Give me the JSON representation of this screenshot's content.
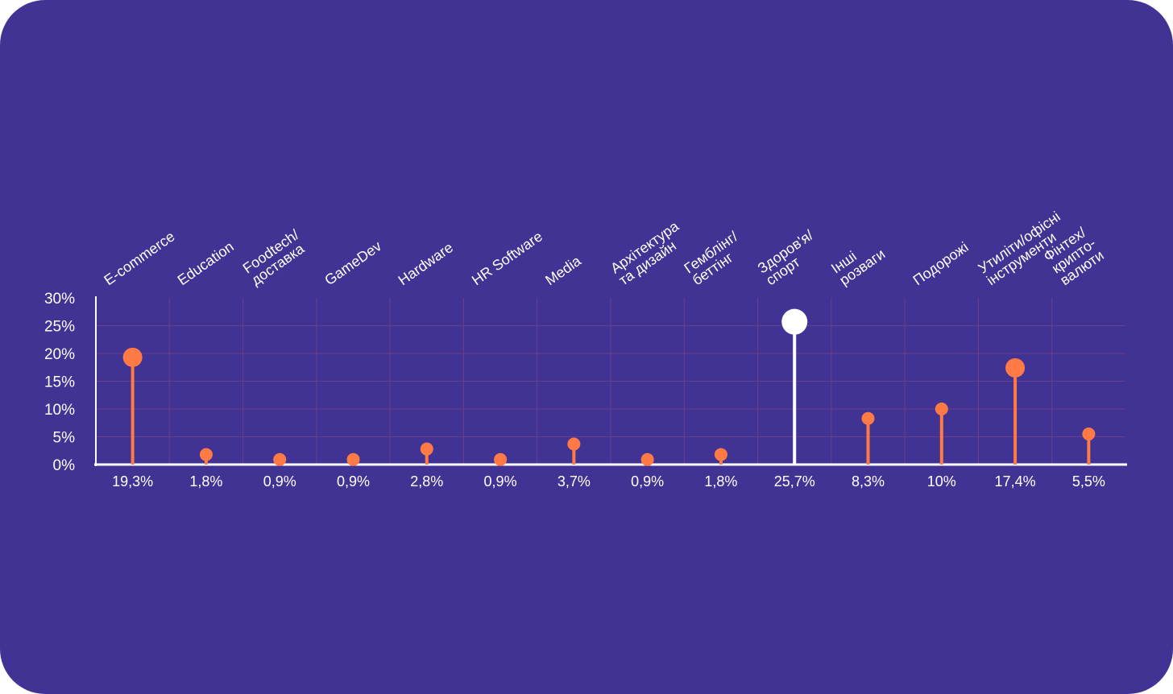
{
  "colors": {
    "background": "#413394",
    "accent": "#ff7a45",
    "highlight": "#ffffff",
    "grid": "#6a3f8a",
    "text": "#ffffff"
  },
  "chart_data": {
    "type": "lollipop",
    "title": "",
    "xlabel": "",
    "ylabel": "",
    "ylim": [
      0,
      30
    ],
    "yticks": [
      "0%",
      "5%",
      "10%",
      "15%",
      "20%",
      "25%",
      "30%"
    ],
    "grid": true,
    "legend": "none",
    "highlight_index": 9,
    "categories": [
      [
        "E-commerce"
      ],
      [
        "Education"
      ],
      [
        "Foodtech/",
        "доставка"
      ],
      [
        "GameDev"
      ],
      [
        "Hardware"
      ],
      [
        "HR Software"
      ],
      [
        "Media"
      ],
      [
        "Архітектура",
        "та дизайн"
      ],
      [
        "Гемблінг/",
        "беттінг"
      ],
      [
        "Здоров'я/",
        "спорт"
      ],
      [
        "Інші",
        "розваги"
      ],
      [
        "Подорожі"
      ],
      [
        "Утиліти/офісні",
        "інструменти"
      ],
      [
        "Фінтех/",
        "крипто-",
        "валюти"
      ]
    ],
    "values": [
      19.3,
      1.8,
      0.9,
      0.9,
      2.8,
      0.9,
      3.7,
      0.9,
      1.8,
      25.7,
      8.3,
      10,
      17.4,
      5.5
    ],
    "value_labels": [
      "19,3%",
      "1,8%",
      "0,9%",
      "0,9%",
      "2,8%",
      "0,9%",
      "3,7%",
      "0,9%",
      "1,8%",
      "25,7%",
      "8,3%",
      "10%",
      "17,4%",
      "5,5%"
    ]
  }
}
